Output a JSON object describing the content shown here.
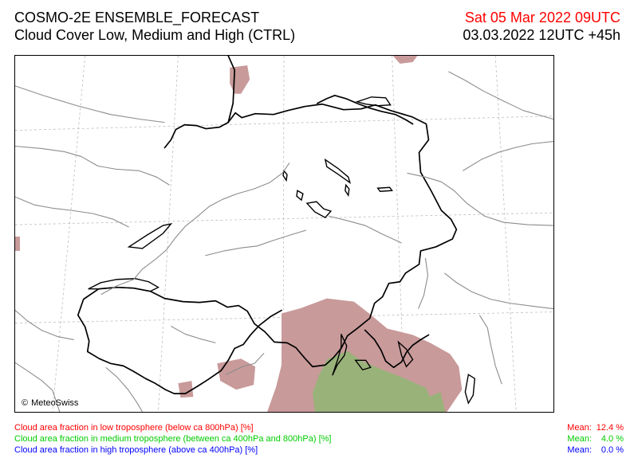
{
  "header": {
    "title": "COSMO-2E ENSEMBLE_FORECAST",
    "subtitle": "Cloud Cover Low, Medium and High (CTRL)",
    "valid_time": "Sat 05 Mar 2022 09UTC",
    "run_time": "03.03.2022 12UTC +45h",
    "valid_time_color": "#ff0000"
  },
  "map": {
    "copyright": "© MeteoSwiss",
    "copyright_icon": "copyright-icon",
    "colors": {
      "low_cloud": "#c99a9a",
      "medium_cloud": "#99b27a",
      "high_cloud": "#0000ff",
      "border": "#000000",
      "admin_border": "#8c8c8c",
      "grid": "#bdbdbd"
    }
  },
  "legend": {
    "low": {
      "label": "Cloud area fraction in low troposphere (below ca 800hPa) [%]",
      "stat_label": "Mean:",
      "value": "12.4 %",
      "color": "#ff0000"
    },
    "medium": {
      "label": "Cloud area fraction in medium troposphere (between ca 400hPa and 800hPa) [%]",
      "stat_label": "Mean:",
      "value": "4.0 %",
      "color": "#00cc00"
    },
    "high": {
      "label": "Cloud area fraction in high troposphere (above ca 400hPa) [%]",
      "stat_label": "Mean:",
      "value": "0.0 %",
      "color": "#0000ff"
    }
  }
}
